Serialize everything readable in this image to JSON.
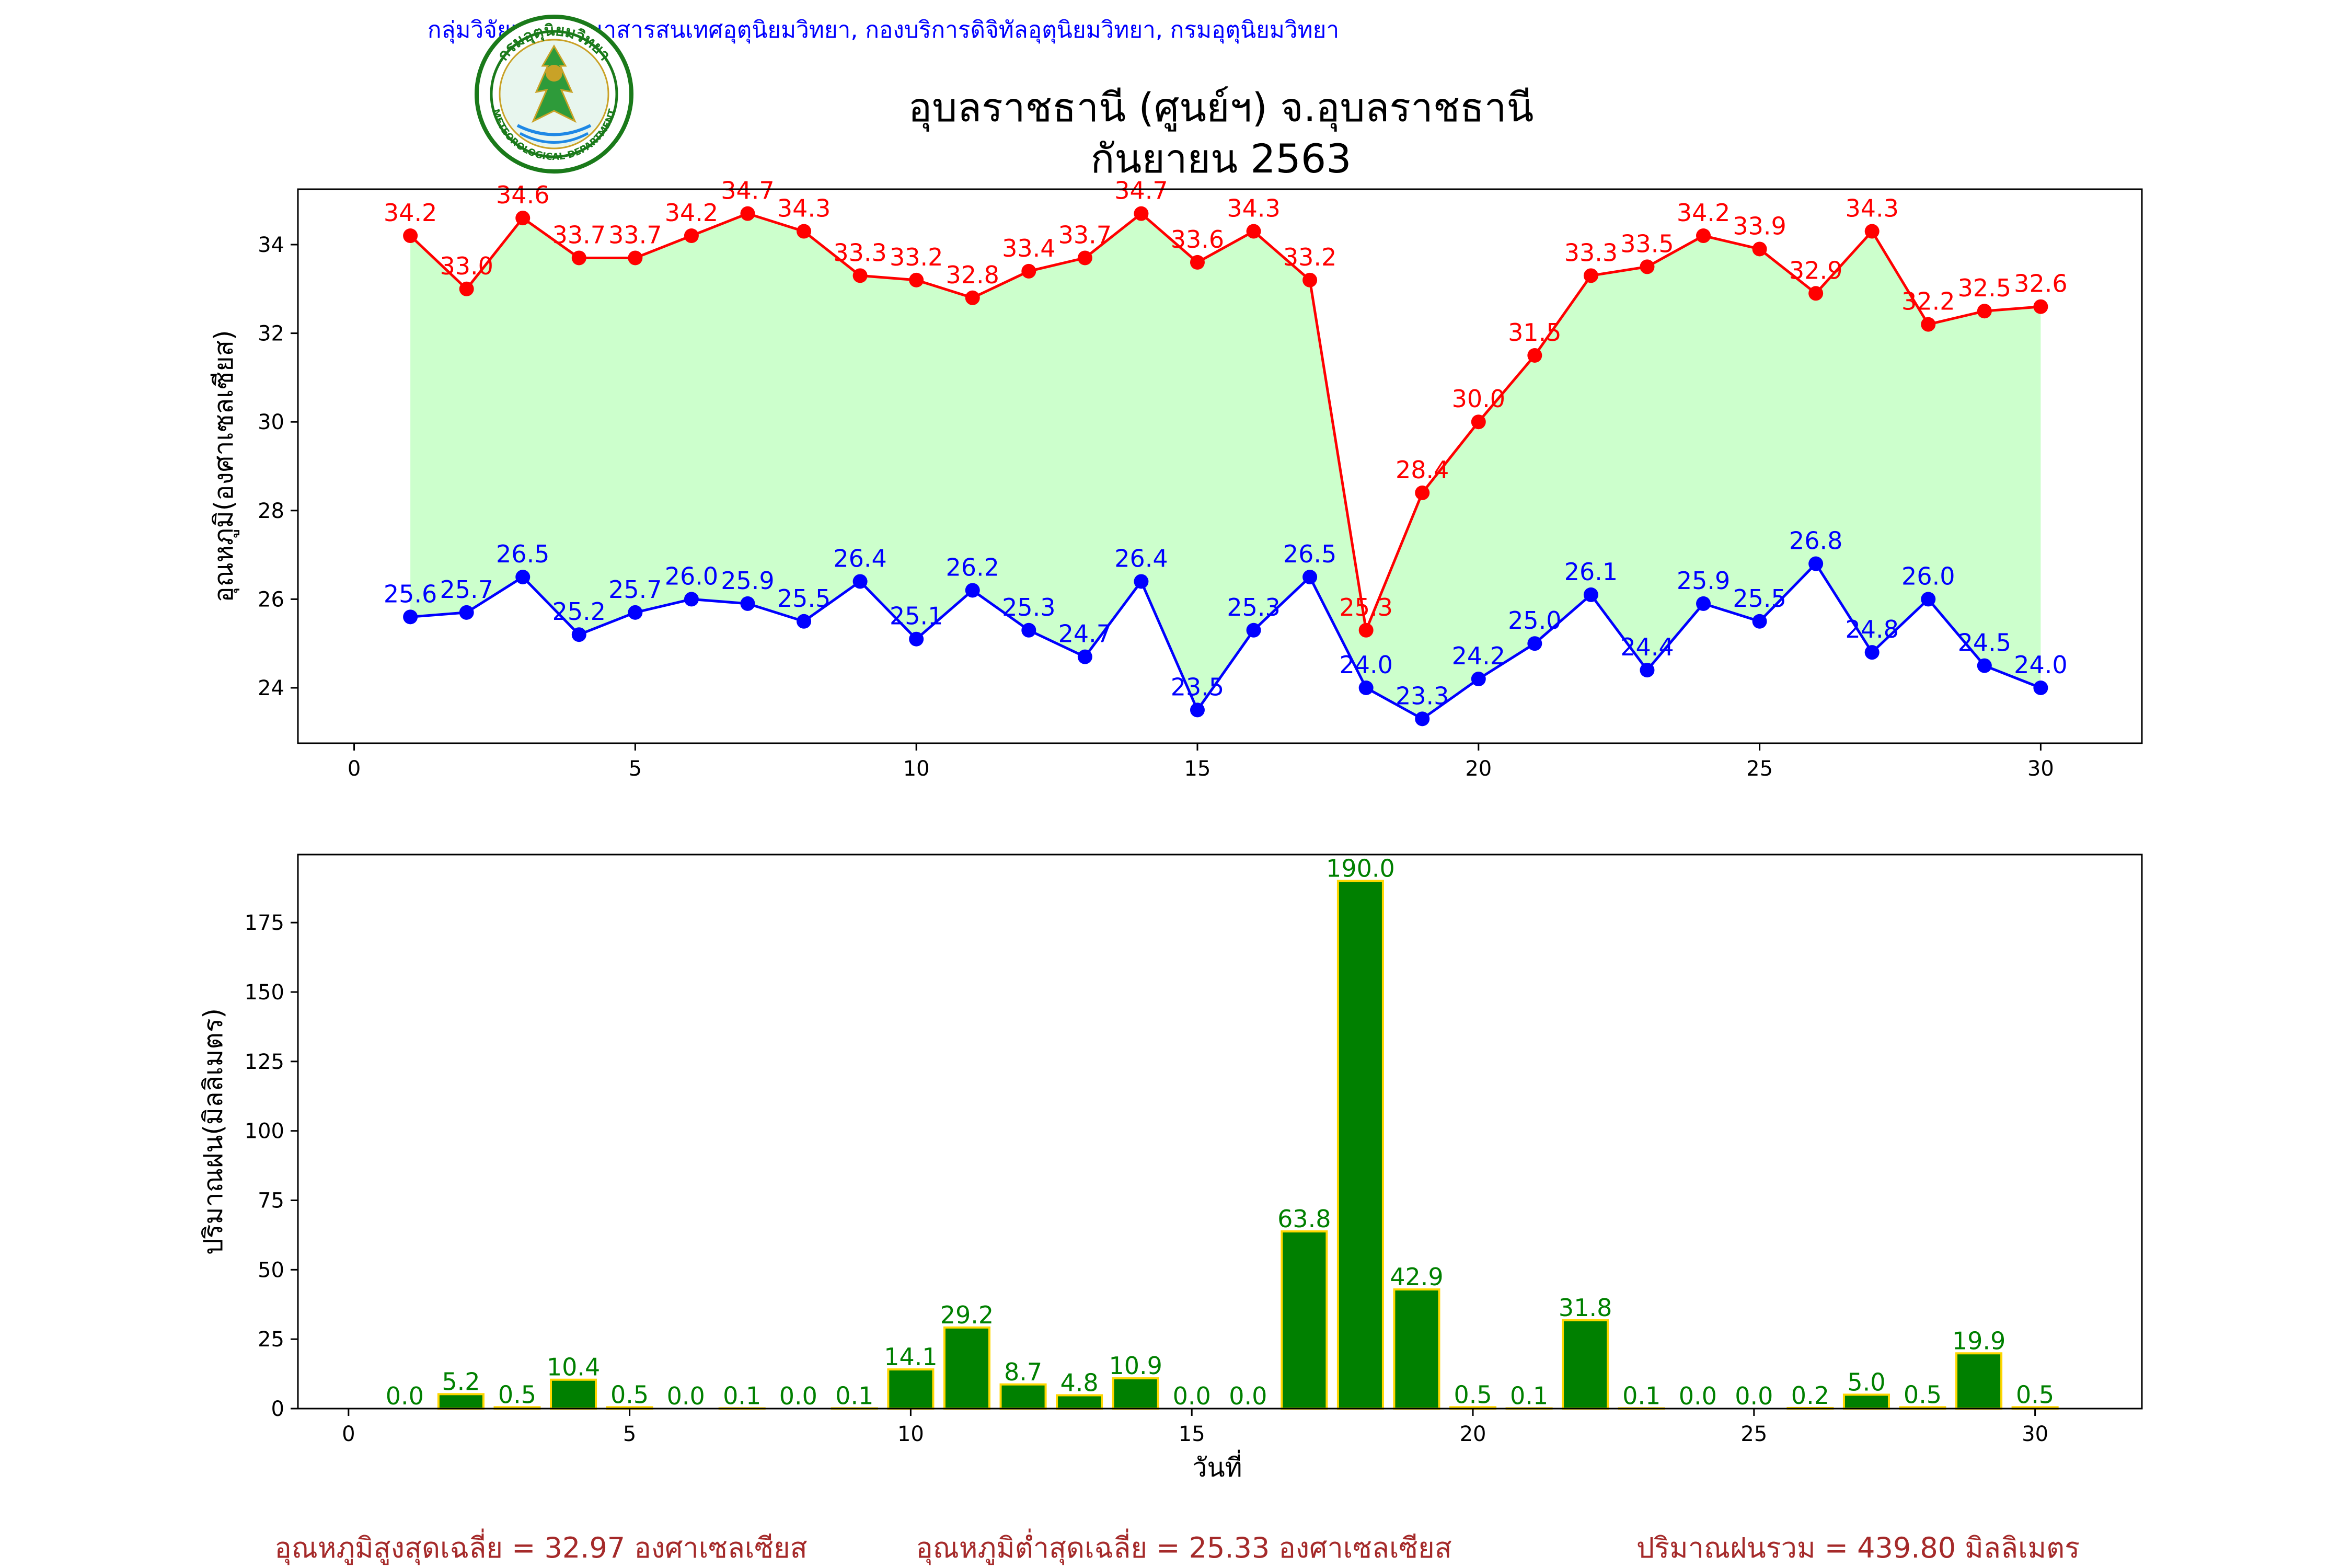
{
  "header": {
    "agency": "กลุ่มวิจัยและพัฒนาสารสนเทศอุตุนิยมวิทยา, กองบริการดิจิทัลอุตุนิยมวิทยา, กรมอุตุนิยมวิทยา",
    "title_line1": "อุบลราชธานี (ศูนย์ฯ) จ.อุบลราชธานี",
    "title_line2": "กันยายน 2563",
    "logo_top_text": "กรมอุตุนิยมวิทยา",
    "logo_bottom_text": "METEOROLOGICAL DEPARTMENT"
  },
  "chart_data": [
    {
      "type": "line",
      "ylabel": "อุณหภูมิ(องศาเซลเซียส)",
      "xlabel": "",
      "x": [
        1,
        2,
        3,
        4,
        5,
        6,
        7,
        8,
        9,
        10,
        11,
        12,
        13,
        14,
        15,
        16,
        17,
        18,
        19,
        20,
        21,
        22,
        23,
        24,
        25,
        26,
        27,
        28,
        29,
        30
      ],
      "xlim": [
        -1,
        31.8
      ],
      "ylim": [
        22.75,
        35.25
      ],
      "xticks": [
        0,
        5,
        10,
        15,
        20,
        25,
        30
      ],
      "yticks": [
        24,
        26,
        28,
        30,
        32,
        34
      ],
      "fill_between": true,
      "fill_color": "#ccffcc",
      "series": [
        {
          "color": "#ff0000",
          "values": [
            34.2,
            33.0,
            34.6,
            33.7,
            33.7,
            34.2,
            34.7,
            34.3,
            33.3,
            33.2,
            32.8,
            33.4,
            33.7,
            34.7,
            33.6,
            34.3,
            33.2,
            25.3,
            28.4,
            30.0,
            31.5,
            33.3,
            33.5,
            34.2,
            33.9,
            32.9,
            34.3,
            32.2,
            32.5,
            32.6
          ]
        },
        {
          "color": "#0000ff",
          "values": [
            25.6,
            25.7,
            26.5,
            25.2,
            25.7,
            26.0,
            25.9,
            25.5,
            26.4,
            25.1,
            26.2,
            25.3,
            24.7,
            26.4,
            23.5,
            25.3,
            26.5,
            24.0,
            23.3,
            24.2,
            25.0,
            26.1,
            24.4,
            25.9,
            25.5,
            26.8,
            24.8,
            26.0,
            24.5,
            24.0
          ]
        }
      ]
    },
    {
      "type": "bar",
      "ylabel": "ปริมาณฝน(มิลลิเมตร)",
      "xlabel": "วันที่",
      "x": [
        1,
        2,
        3,
        4,
        5,
        6,
        7,
        8,
        9,
        10,
        11,
        12,
        13,
        14,
        15,
        16,
        17,
        18,
        19,
        20,
        21,
        22,
        23,
        24,
        25,
        26,
        27,
        28,
        29,
        30
      ],
      "values": [
        0.0,
        5.2,
        0.5,
        10.4,
        0.5,
        0.0,
        0.1,
        0.0,
        0.1,
        14.1,
        29.2,
        8.7,
        4.8,
        10.9,
        0.0,
        0.0,
        63.8,
        190.0,
        42.9,
        0.5,
        0.1,
        31.8,
        0.1,
        0.0,
        0.0,
        0.2,
        5.0,
        0.5,
        19.9,
        0.5
      ],
      "xlim": [
        -0.9,
        31.9
      ],
      "ylim": [
        0,
        199.5
      ],
      "xticks": [
        0,
        5,
        10,
        15,
        20,
        25,
        30
      ],
      "yticks": [
        0,
        25,
        50,
        75,
        100,
        125,
        150,
        175
      ],
      "bar_color": "#008000",
      "bar_edge_color": "#ffd700",
      "label_color": "#008000"
    }
  ],
  "footer": {
    "avg_max": "อุณหภูมิสูงสุดเฉลี่ย = 32.97 องศาเซลเซียส",
    "avg_min": "อุณหภูมิต่ำสุดเฉลี่ย = 25.33 องศาเซลเซียส",
    "rain_total": "ปริมาณฝนรวม = 439.80 มิลลิเมตร",
    "color": "#a52a2a"
  }
}
